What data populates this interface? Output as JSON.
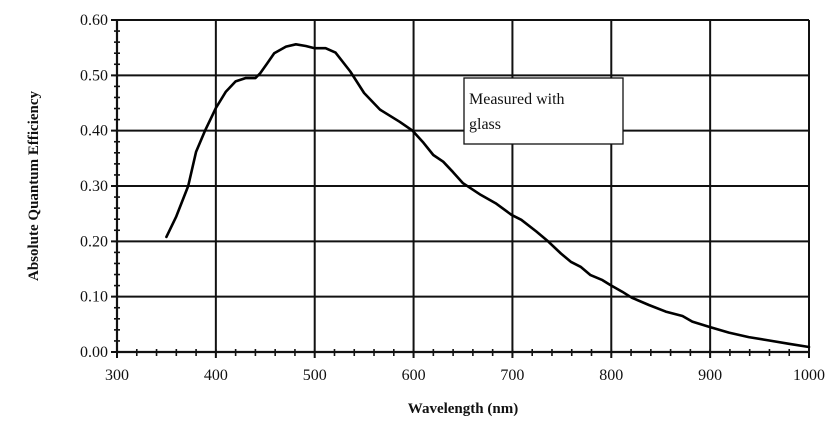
{
  "chart_data": {
    "type": "line",
    "title": "",
    "xlabel": "Wavelength (nm)",
    "ylabel": "Absolute Quantum Efficiency",
    "xlim": [
      300,
      1000
    ],
    "ylim": [
      0,
      0.6
    ],
    "grid": true,
    "x_ticks": [
      300,
      400,
      500,
      600,
      700,
      800,
      900,
      1000
    ],
    "x_tick_labels": [
      "300",
      "400",
      "500",
      "600",
      "700",
      "800",
      "900",
      "1000"
    ],
    "y_ticks": [
      0,
      0.1,
      0.2,
      0.3,
      0.4,
      0.5,
      0.6
    ],
    "y_tick_labels": [
      "0.00",
      "0.10",
      "0.20",
      "0.30",
      "0.40",
      "0.50",
      "0.60"
    ],
    "x_minor_step": 20,
    "y_minor_step": 0.02,
    "annotation": {
      "lines": [
        "Measured with",
        "glass"
      ],
      "anchor_x": 615,
      "anchor_y": 0.495
    },
    "series": [
      {
        "name": "Measured with glass",
        "color": "#000000",
        "x": [
          350,
          360,
          372,
          380,
          389,
          400,
          410,
          420,
          430,
          440,
          445,
          452,
          459,
          471,
          481,
          491,
          500,
          511,
          521,
          536,
          550,
          566,
          586,
          599,
          610,
          620,
          630,
          640,
          650,
          668,
          683,
          699,
          709,
          724,
          736,
          749,
          759,
          769,
          779,
          791,
          799,
          811,
          821,
          838,
          855,
          872,
          882,
          900,
          919,
          939,
          959,
          979,
          1000
        ],
        "values": [
          0.208,
          0.245,
          0.3,
          0.362,
          0.4,
          0.441,
          0.47,
          0.489,
          0.495,
          0.495,
          0.504,
          0.522,
          0.54,
          0.552,
          0.556,
          0.553,
          0.549,
          0.549,
          0.541,
          0.507,
          0.468,
          0.438,
          0.416,
          0.4,
          0.378,
          0.356,
          0.344,
          0.325,
          0.305,
          0.284,
          0.269,
          0.248,
          0.239,
          0.218,
          0.2,
          0.178,
          0.163,
          0.154,
          0.139,
          0.13,
          0.121,
          0.109,
          0.098,
          0.085,
          0.073,
          0.065,
          0.055,
          0.045,
          0.035,
          0.027,
          0.021,
          0.015,
          0.009
        ]
      }
    ]
  }
}
